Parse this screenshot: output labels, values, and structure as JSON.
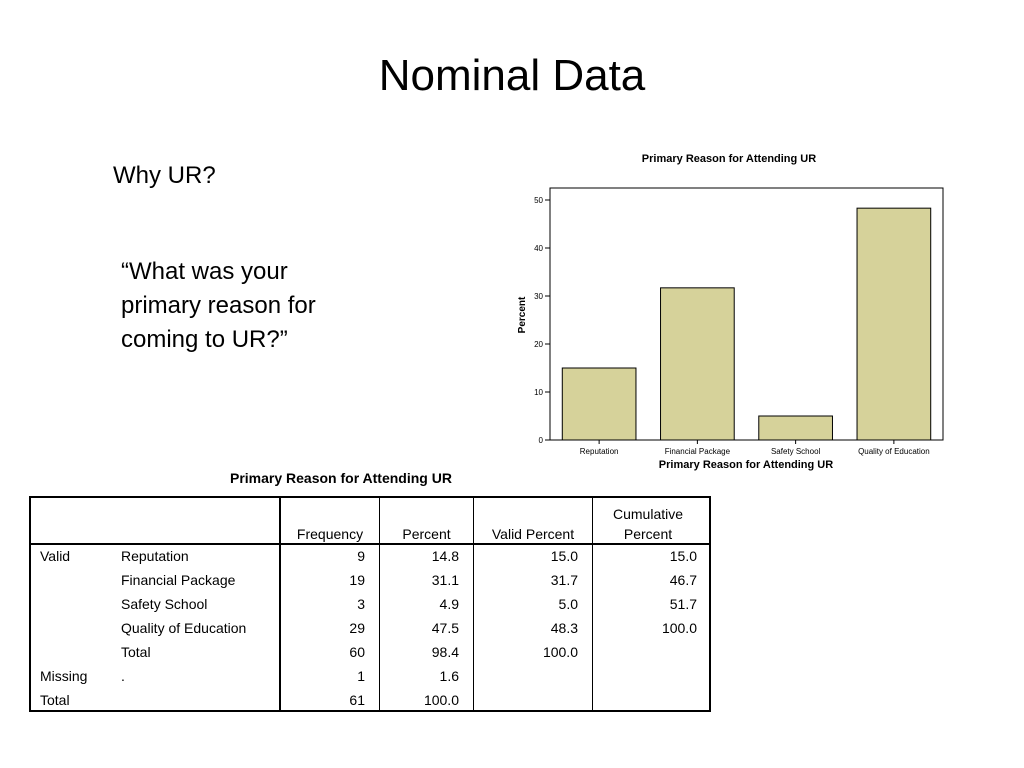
{
  "slide": {
    "title": "Nominal Data",
    "question_heading": "Why UR?",
    "quote_lines": [
      "“What was your",
      "primary reason for",
      "coming to UR?”"
    ]
  },
  "chart_data": {
    "type": "bar",
    "title": "Primary Reason for Attending UR",
    "xlabel": "Primary Reason for Attending UR",
    "ylabel": "Percent",
    "categories": [
      "Reputation",
      "Financial Package",
      "Safety School",
      "Quality of Education"
    ],
    "values": [
      15.0,
      31.7,
      5.0,
      48.3
    ],
    "ylim": [
      0,
      52.5
    ],
    "yticks": [
      0,
      10,
      20,
      30,
      40,
      50
    ],
    "grid": false,
    "bar_color": "#d6d29a",
    "bar_stroke": "#000000"
  },
  "table": {
    "caption": "Primary Reason for Attending UR",
    "headers": {
      "frequency": "Frequency",
      "percent": "Percent",
      "valid_percent": "Valid Percent",
      "cumulative_line1": "Cumulative",
      "cumulative_line2": "Percent"
    },
    "rows": [
      {
        "group": "Valid",
        "label": "Reputation",
        "frequency": "9",
        "percent": "14.8",
        "valid_percent": "15.0",
        "cumulative": "15.0"
      },
      {
        "group": "",
        "label": "Financial Package",
        "frequency": "19",
        "percent": "31.1",
        "valid_percent": "31.7",
        "cumulative": "46.7"
      },
      {
        "group": "",
        "label": "Safety School",
        "frequency": "3",
        "percent": "4.9",
        "valid_percent": "5.0",
        "cumulative": "51.7"
      },
      {
        "group": "",
        "label": "Quality of Education",
        "frequency": "29",
        "percent": "47.5",
        "valid_percent": "48.3",
        "cumulative": "100.0"
      },
      {
        "group": "",
        "label": "Total",
        "frequency": "60",
        "percent": "98.4",
        "valid_percent": "100.0",
        "cumulative": ""
      },
      {
        "group": "Missing",
        "label": ".",
        "frequency": "1",
        "percent": "1.6",
        "valid_percent": "",
        "cumulative": ""
      },
      {
        "group": "Total",
        "label": "",
        "frequency": "61",
        "percent": "100.0",
        "valid_percent": "",
        "cumulative": ""
      }
    ]
  }
}
